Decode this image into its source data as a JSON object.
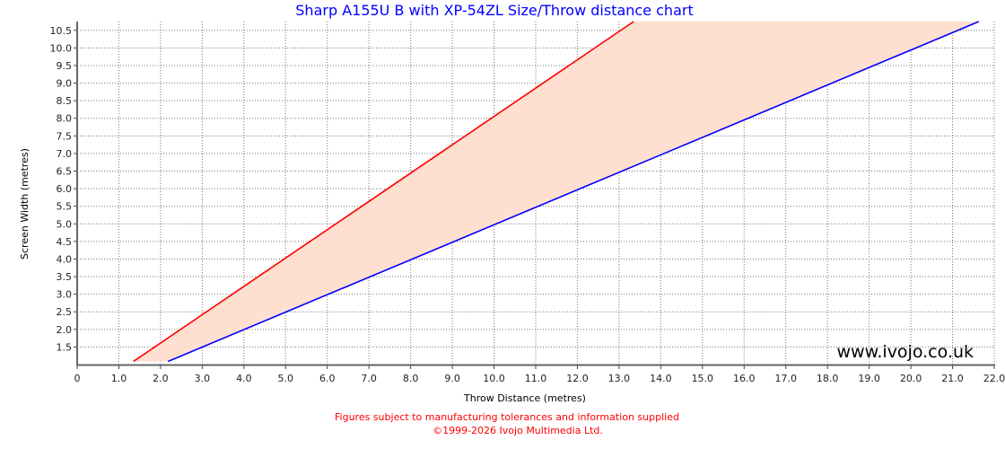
{
  "chart_data": {
    "type": "area",
    "title": "Sharp A155U B with XP-54ZL Size/Throw distance chart",
    "xlabel": "Throw Distance (metres)",
    "ylabel": "Screen Width (metres)",
    "xlim": [
      0,
      22
    ],
    "ylim": [
      1.0,
      10.75
    ],
    "grid": true,
    "x_ticks": [
      "0",
      "1.0",
      "2.0",
      "3.0",
      "4.0",
      "5.0",
      "6.0",
      "7.0",
      "8.0",
      "9.0",
      "10.0",
      "11.0",
      "12.0",
      "13.0",
      "14.0",
      "15.0",
      "16.0",
      "17.0",
      "18.0",
      "19.0",
      "20.0",
      "21.0",
      "22.0"
    ],
    "y_ticks": [
      "1.5",
      "2.0",
      "2.5",
      "3.0",
      "3.5",
      "4.0",
      "4.5",
      "5.0",
      "5.5",
      "6.0",
      "6.5",
      "7.0",
      "7.5",
      "8.0",
      "8.5",
      "9.0",
      "9.5",
      "10.0",
      "10.5"
    ],
    "series": [
      {
        "color": "#ff0000",
        "points": [
          [
            1.35,
            1.09
          ],
          [
            13.35,
            10.76
          ]
        ]
      },
      {
        "color": "#0000ff",
        "points": [
          [
            2.18,
            1.09
          ],
          [
            21.63,
            10.76
          ]
        ]
      }
    ],
    "fill_color": "#ffdfcf",
    "watermark": "www.ivojo.co.uk"
  },
  "footer": {
    "line1": "Figures subject to manufacturing tolerances and information supplied",
    "line2": "©1999-2026 Ivojo Multimedia Ltd."
  },
  "colors": {
    "title": "#0000ff",
    "footer": "#ff0000"
  }
}
